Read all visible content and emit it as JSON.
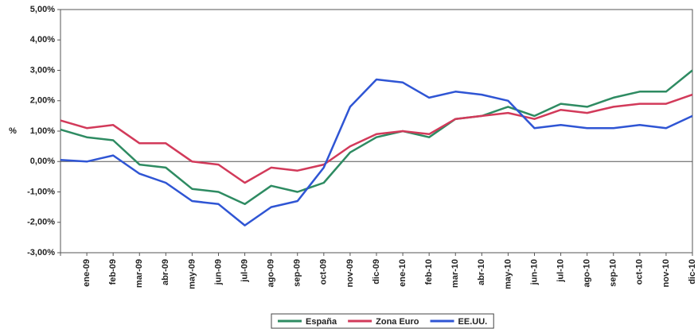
{
  "chart_data": {
    "type": "line",
    "y_label": "%",
    "categories": [
      null,
      "ene-09",
      "feb-09",
      "mar-09",
      "abr-09",
      "may-09",
      "jun-09",
      "jul-09",
      "ago-09",
      "sep-09",
      "oct-09",
      "nov-09",
      "dic-09",
      "ene-10",
      "feb-10",
      "mar-10",
      "abr-10",
      "may-10",
      "jun-10",
      "jul-10",
      "ago-10",
      "sep-10",
      "oct-10",
      "nov-10",
      "dic-10"
    ],
    "series": [
      {
        "name": "España",
        "color": "#2e8b62",
        "values": [
          1.05,
          0.8,
          0.7,
          -0.1,
          -0.2,
          -0.9,
          -1.0,
          -1.4,
          -0.8,
          -1.0,
          -0.7,
          0.3,
          0.8,
          1.0,
          0.8,
          1.4,
          1.5,
          1.8,
          1.5,
          1.9,
          1.8,
          2.1,
          2.3,
          2.3,
          3.0
        ]
      },
      {
        "name": "Zona Euro",
        "color": "#d23a5a",
        "values": [
          1.35,
          1.1,
          1.2,
          0.6,
          0.6,
          0.0,
          -0.1,
          -0.7,
          -0.2,
          -0.3,
          -0.1,
          0.5,
          0.9,
          1.0,
          0.9,
          1.4,
          1.5,
          1.6,
          1.4,
          1.7,
          1.6,
          1.8,
          1.9,
          1.9,
          2.2
        ]
      },
      {
        "name": "EE.UU.",
        "color": "#2f55d4",
        "values": [
          0.05,
          0.0,
          0.2,
          -0.4,
          -0.7,
          -1.3,
          -1.4,
          -2.1,
          -1.5,
          -1.3,
          -0.2,
          1.8,
          2.7,
          2.6,
          2.1,
          2.3,
          2.2,
          2.0,
          1.1,
          1.2,
          1.1,
          1.1,
          1.2,
          1.1,
          1.5
        ]
      }
    ],
    "ylim": [
      -3,
      5
    ],
    "yticks": [
      {
        "value": -3,
        "label": "-3,00%"
      },
      {
        "value": -2,
        "label": "-2,00%"
      },
      {
        "value": -1,
        "label": "-1,00%"
      },
      {
        "value": 0,
        "label": "0,00%"
      },
      {
        "value": 1,
        "label": "1,00%"
      },
      {
        "value": 2,
        "label": "2,00%"
      },
      {
        "value": 3,
        "label": "3,00%"
      },
      {
        "value": 4,
        "label": "4,00%"
      },
      {
        "value": 5,
        "label": "5,00%"
      }
    ],
    "legend": "bottom"
  }
}
